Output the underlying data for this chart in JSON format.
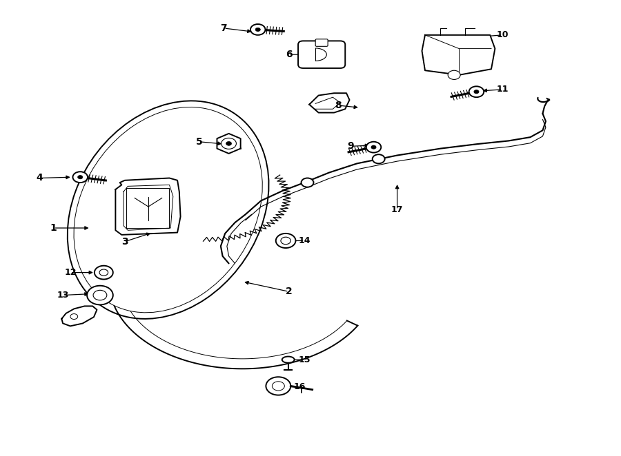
{
  "background_color": "#ffffff",
  "line_color": "#000000",
  "text_color": "#000000",
  "label_positions": {
    "1": [
      0.085,
      0.5,
      0.145,
      0.5
    ],
    "2": [
      0.465,
      0.64,
      0.39,
      0.618
    ],
    "3": [
      0.2,
      0.53,
      0.245,
      0.51
    ],
    "4": [
      0.062,
      0.39,
      0.115,
      0.388
    ],
    "5": [
      0.32,
      0.31,
      0.36,
      0.315
    ],
    "6": [
      0.465,
      0.118,
      0.51,
      0.118
    ],
    "7": [
      0.36,
      0.06,
      0.408,
      0.068
    ],
    "8": [
      0.545,
      0.23,
      0.58,
      0.235
    ],
    "9": [
      0.565,
      0.32,
      0.598,
      0.318
    ],
    "10": [
      0.81,
      0.075,
      0.762,
      0.08
    ],
    "11": [
      0.81,
      0.195,
      0.775,
      0.198
    ],
    "12": [
      0.112,
      0.598,
      0.152,
      0.598
    ],
    "13": [
      0.1,
      0.648,
      0.145,
      0.645
    ],
    "14": [
      0.49,
      0.528,
      0.45,
      0.528
    ],
    "15": [
      0.49,
      0.79,
      0.455,
      0.79
    ],
    "16": [
      0.483,
      0.85,
      0.44,
      0.85
    ],
    "17": [
      0.64,
      0.46,
      0.64,
      0.4
    ]
  }
}
